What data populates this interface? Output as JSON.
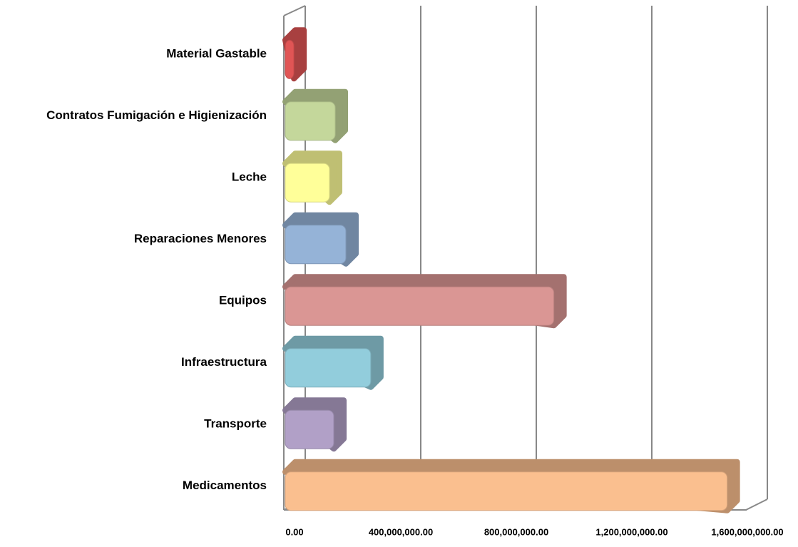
{
  "chart_data": {
    "type": "bar3d_horizontal",
    "categories": [
      "Material Gastable",
      "Contratos Fumigación e Higienización",
      "Leche",
      "Reparaciones Menores",
      "Equipos",
      "Infraestructura",
      "Transporte",
      "Medicamentos"
    ],
    "values": [
      30000000,
      173000000,
      153000000,
      210000000,
      930000000,
      296000000,
      168000000,
      1530000000
    ],
    "colors": [
      "#e05555",
      "#c4d79b",
      "#ffff99",
      "#95b3d7",
      "#da9694",
      "#92cddc",
      "#b1a0c7",
      "#fabf8f"
    ],
    "xlim": [
      0,
      1600000000
    ],
    "xticks": [
      {
        "value": 0,
        "label": "0.00"
      },
      {
        "value": 400000000,
        "label": "400,000,000.00"
      },
      {
        "value": 800000000,
        "label": "800,000,000.00"
      },
      {
        "value": 1200000000,
        "label": "1,200,000,000.00"
      },
      {
        "value": 1600000000,
        "label": "1,600,000,000.00"
      }
    ],
    "grid": true
  }
}
